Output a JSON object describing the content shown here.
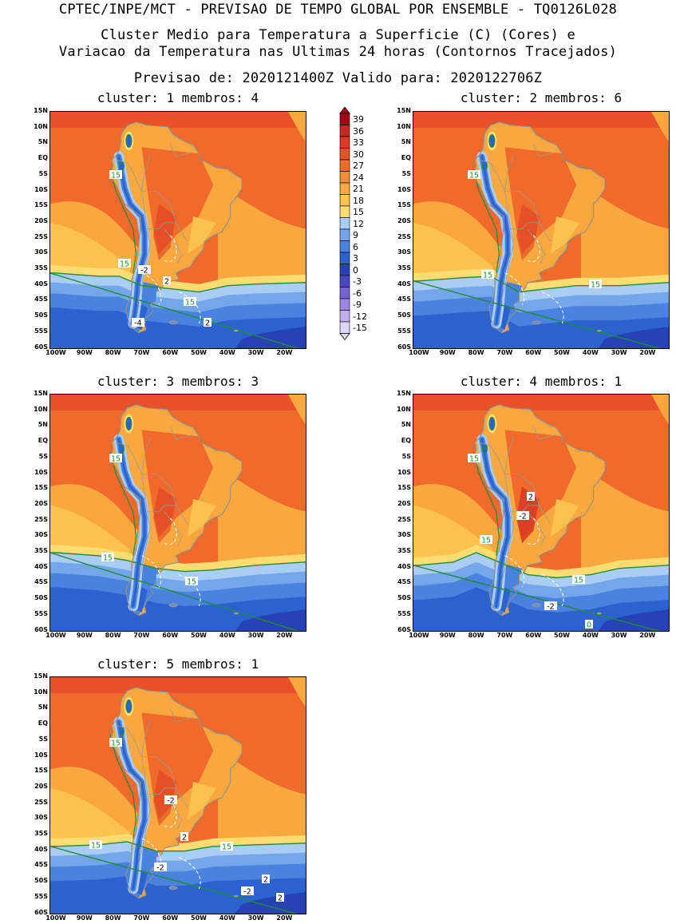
{
  "header": {
    "line1": "CPTEC/INPE/MCT - PREVISAO DE TEMPO GLOBAL POR ENSEMBLE - TQ0126L028",
    "line2": "Cluster Medio para Temperatura a Superficie (C) (Cores) e",
    "line3": "Variacao da Temperatura nas Ultimas 24 horas (Contornos Tracejados)",
    "line4": "Previsao de: 2020121400Z    Valido para: 2020122706Z"
  },
  "lat_labels": [
    "15N",
    "10N",
    "5N",
    "EQ",
    "5S",
    "10S",
    "15S",
    "20S",
    "25S",
    "30S",
    "35S",
    "40S",
    "45S",
    "50S",
    "55S",
    "60S"
  ],
  "lon_labels": [
    "100W",
    "90W",
    "80W",
    "70W",
    "60W",
    "50W",
    "40W",
    "30W",
    "20W"
  ],
  "colorbar": {
    "labels": [
      "39",
      "36",
      "33",
      "30",
      "27",
      "24",
      "21",
      "18",
      "15",
      "12",
      "9",
      "6",
      "3",
      "0",
      "-3",
      "-6",
      "-9",
      "-12",
      "-15"
    ],
    "colors": [
      "#a50016",
      "#c42a22",
      "#dc3a22",
      "#e8512a",
      "#f06a2c",
      "#f58a34",
      "#f8a83e",
      "#fbc24e",
      "#fddd72",
      "#a9cdf3",
      "#74a7ea",
      "#4a82df",
      "#2c62cf",
      "#2742b2",
      "#4a47c4",
      "#7262d6",
      "#9a88e4",
      "#beaff0",
      "#ded6f8"
    ]
  },
  "panels": [
    {
      "id": 1,
      "title": "cluster: 1   membros: 4",
      "labels": [
        {
          "t": "15",
          "x": 82,
          "y": 79,
          "s": "g"
        },
        {
          "t": "15",
          "x": 93,
          "y": 190,
          "s": "g"
        },
        {
          "t": "-2",
          "x": 118,
          "y": 198,
          "s": "w"
        },
        {
          "t": "2",
          "x": 146,
          "y": 212,
          "s": "w"
        },
        {
          "t": "15",
          "x": 175,
          "y": 238,
          "s": "g"
        },
        {
          "t": "-4",
          "x": 110,
          "y": 264,
          "s": "w"
        },
        {
          "t": "2",
          "x": 197,
          "y": 264,
          "s": "w"
        }
      ],
      "variant": 0
    },
    {
      "id": 2,
      "title": "cluster: 2   membros: 6",
      "labels": [
        {
          "t": "15",
          "x": 76,
          "y": 79,
          "s": "g"
        },
        {
          "t": "15",
          "x": 93,
          "y": 204,
          "s": "g"
        },
        {
          "t": "15",
          "x": 228,
          "y": 216,
          "s": "g"
        }
      ],
      "variant": 1
    },
    {
      "id": 3,
      "title": "cluster: 3   membros: 3",
      "labels": [
        {
          "t": "15",
          "x": 82,
          "y": 80,
          "s": "g"
        },
        {
          "t": "15",
          "x": 72,
          "y": 204,
          "s": "g"
        },
        {
          "t": "15",
          "x": 177,
          "y": 234,
          "s": "g"
        }
      ],
      "variant": 2
    },
    {
      "id": 4,
      "title": "cluster: 4   membros: 1",
      "labels": [
        {
          "t": "15",
          "x": 76,
          "y": 80,
          "s": "g"
        },
        {
          "t": "2",
          "x": 147,
          "y": 128,
          "s": "w"
        },
        {
          "t": "-2",
          "x": 137,
          "y": 152,
          "s": "w"
        },
        {
          "t": "15",
          "x": 91,
          "y": 182,
          "s": "g"
        },
        {
          "t": "15",
          "x": 207,
          "y": 232,
          "s": "g"
        },
        {
          "t": "-2",
          "x": 172,
          "y": 265,
          "s": "w"
        },
        {
          "t": "0",
          "x": 220,
          "y": 288,
          "s": "g"
        }
      ],
      "variant": 3
    },
    {
      "id": 5,
      "title": "cluster: 5   membros: 1",
      "labels": [
        {
          "t": "15",
          "x": 82,
          "y": 82,
          "s": "g"
        },
        {
          "t": "-2",
          "x": 151,
          "y": 154,
          "s": "w"
        },
        {
          "t": "2",
          "x": 168,
          "y": 200,
          "s": "w"
        },
        {
          "t": "15",
          "x": 57,
          "y": 210,
          "s": "g"
        },
        {
          "t": "15",
          "x": 221,
          "y": 212,
          "s": "g"
        },
        {
          "t": "-2",
          "x": 138,
          "y": 238,
          "s": "w"
        },
        {
          "t": "2",
          "x": 270,
          "y": 253,
          "s": "w"
        },
        {
          "t": "-2",
          "x": 247,
          "y": 268,
          "s": "w"
        },
        {
          "t": "2",
          "x": 288,
          "y": 276,
          "s": "w"
        }
      ],
      "variant": 4
    }
  ]
}
